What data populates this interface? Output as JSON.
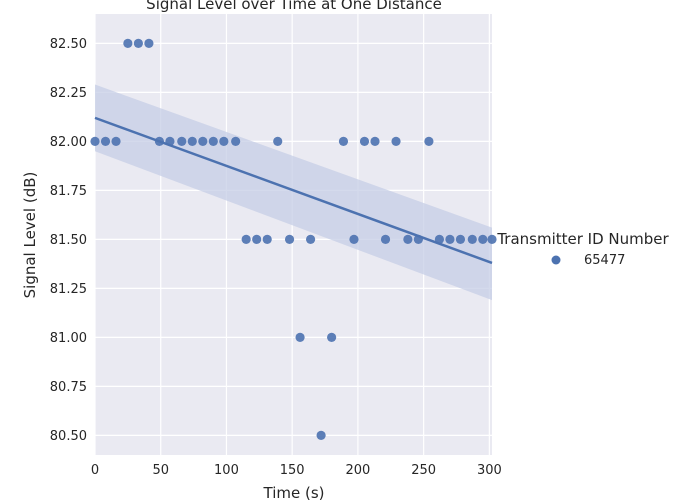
{
  "chart_data": {
    "type": "scatter",
    "title": "Signal Level over Time at One Distance",
    "xlabel": "Time (s)",
    "ylabel": "Signal Level (dB)",
    "xlim": [
      0,
      302
    ],
    "ylim": [
      80.4,
      82.65
    ],
    "x_ticks": [
      0,
      50,
      100,
      150,
      200,
      250,
      300
    ],
    "y_ticks": [
      80.5,
      80.75,
      81.0,
      81.25,
      81.5,
      81.75,
      82.0,
      82.25,
      82.5
    ],
    "x_tick_labels": [
      "0",
      "50",
      "100",
      "150",
      "200",
      "250",
      "300"
    ],
    "y_tick_labels": [
      "80.50",
      "80.75",
      "81.00",
      "81.25",
      "81.50",
      "81.75",
      "82.00",
      "82.25",
      "82.50"
    ],
    "grid": true,
    "legend": {
      "title": "Transmitter ID Number",
      "placement": "right",
      "entries": [
        "65477"
      ]
    },
    "colors": {
      "background": "#eaeaf2",
      "grid": "#ffffff",
      "point": "#4c72b0",
      "band": "#c5cde5"
    },
    "series": [
      {
        "name": "65477",
        "x": [
          0,
          8,
          16,
          25,
          33,
          41,
          49,
          57,
          66,
          74,
          82,
          90,
          98,
          107,
          115,
          123,
          131,
          139,
          148,
          156,
          164,
          172,
          180,
          189,
          197,
          205,
          213,
          221,
          229,
          238,
          246,
          254,
          262,
          270,
          278,
          287,
          295,
          302
        ],
        "y": [
          82.0,
          82.0,
          82.0,
          82.5,
          82.5,
          82.5,
          82.0,
          82.0,
          82.0,
          82.0,
          82.0,
          82.0,
          82.0,
          82.0,
          81.5,
          81.5,
          81.5,
          82.0,
          81.5,
          81.0,
          81.5,
          80.5,
          81.0,
          82.0,
          81.5,
          82.0,
          82.0,
          81.5,
          82.0,
          81.5,
          81.5,
          82.0,
          81.5,
          81.5,
          81.5,
          81.5,
          81.5,
          81.5
        ]
      }
    ],
    "regression": {
      "x": [
        0,
        302
      ],
      "y": [
        82.12,
        81.38
      ],
      "ci_lower": [
        81.95,
        81.19
      ],
      "ci_upper": [
        82.29,
        81.56
      ]
    }
  }
}
